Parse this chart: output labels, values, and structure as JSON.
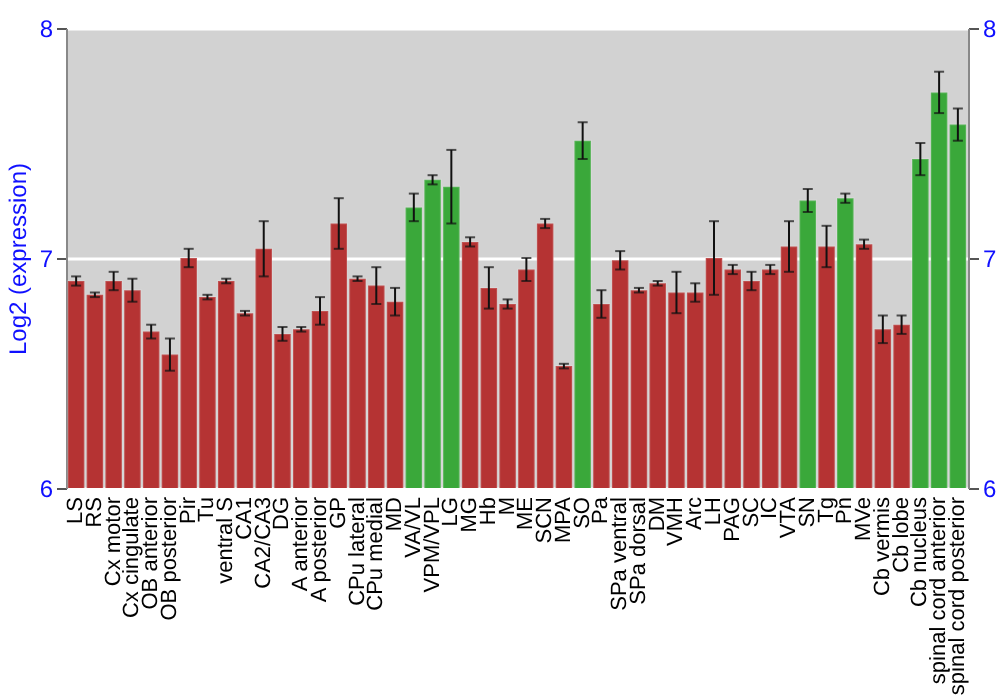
{
  "chart_data": {
    "type": "bar",
    "ylabel": "Log2 (expression)",
    "categories": [
      "LS",
      "RS",
      "Cx motor",
      "Cx cingulate",
      "OB anterior",
      "OB posterior",
      "Pir",
      "Tu",
      "ventral S",
      "CA1",
      "CA2/CA3",
      "DG",
      "A anterior",
      "A posterior",
      "GP",
      "CPu lateral",
      "CPu medial",
      "MD",
      "VA/VL",
      "VPM/VPL",
      "LG",
      "MG",
      "Hb",
      "M",
      "ME",
      "SCN",
      "MPA",
      "SO",
      "Pa",
      "SPa ventral",
      "SPa dorsal",
      "DM",
      "VMH",
      "Arc",
      "LH",
      "PAG",
      "SC",
      "IC",
      "VTA",
      "SN",
      "Tg",
      "Pn",
      "MVe",
      "Cb vermis",
      "Cb lobe",
      "Cb nucleus",
      "spinal cord anterior",
      "spinal cord posterior"
    ],
    "values": [
      6.9,
      6.84,
      6.9,
      6.86,
      6.68,
      6.58,
      7.0,
      6.83,
      6.9,
      6.76,
      7.04,
      6.67,
      6.69,
      6.77,
      7.15,
      6.91,
      6.88,
      6.81,
      7.22,
      7.34,
      7.31,
      7.07,
      6.87,
      6.8,
      6.95,
      7.15,
      6.53,
      7.51,
      6.8,
      6.99,
      6.86,
      6.89,
      6.85,
      6.85,
      7.0,
      6.95,
      6.9,
      6.95,
      7.05,
      7.25,
      7.05,
      7.26,
      7.06,
      6.69,
      6.71,
      7.43,
      7.72,
      7.58
    ],
    "errors": [
      0.02,
      0.01,
      0.04,
      0.05,
      0.03,
      0.07,
      0.04,
      0.01,
      0.01,
      0.01,
      0.12,
      0.03,
      0.01,
      0.06,
      0.11,
      0.01,
      0.08,
      0.06,
      0.06,
      0.02,
      0.16,
      0.02,
      0.09,
      0.02,
      0.05,
      0.02,
      0.01,
      0.08,
      0.06,
      0.04,
      0.01,
      0.01,
      0.09,
      0.04,
      0.16,
      0.02,
      0.04,
      0.02,
      0.11,
      0.05,
      0.09,
      0.02,
      0.02,
      0.06,
      0.04,
      0.07,
      0.09,
      0.07
    ],
    "colors": [
      "#b53333",
      "#b53333",
      "#b53333",
      "#b53333",
      "#b53333",
      "#b53333",
      "#b53333",
      "#b53333",
      "#b53333",
      "#b53333",
      "#b53333",
      "#b53333",
      "#b53333",
      "#b53333",
      "#b53333",
      "#b53333",
      "#b53333",
      "#b53333",
      "#3aa83a",
      "#3aa83a",
      "#3aa83a",
      "#b53333",
      "#b53333",
      "#b53333",
      "#b53333",
      "#b53333",
      "#b53333",
      "#3aa83a",
      "#b53333",
      "#b53333",
      "#b53333",
      "#b53333",
      "#b53333",
      "#b53333",
      "#b53333",
      "#b53333",
      "#b53333",
      "#b53333",
      "#b53333",
      "#3aa83a",
      "#b53333",
      "#3aa83a",
      "#b53333",
      "#b53333",
      "#b53333",
      "#3aa83a",
      "#3aa83a",
      "#3aa83a"
    ],
    "ylim": [
      6,
      8
    ],
    "yticks": [
      6,
      7,
      8
    ],
    "y2lim": [
      6,
      8
    ],
    "y2ticks": [
      6,
      7,
      8
    ],
    "grid": "y"
  }
}
